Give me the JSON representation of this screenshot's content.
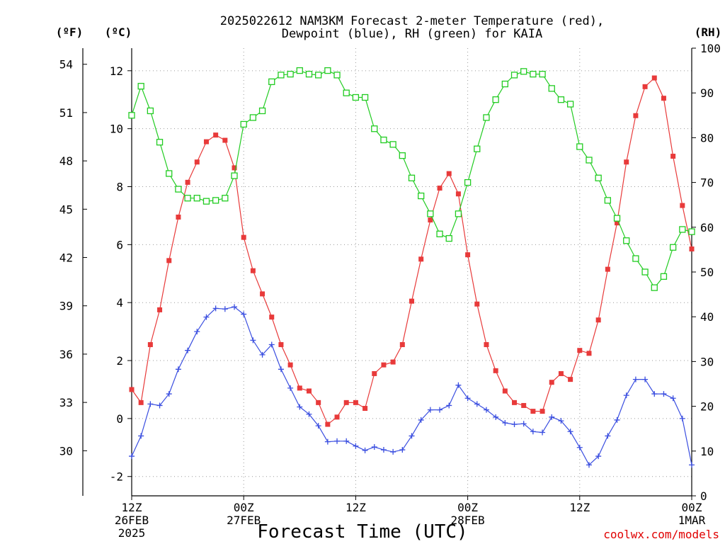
{
  "chart_data": {
    "type": "line",
    "title_line1": "2025022612 NAM3KM Forecast 2-meter Temperature (red),",
    "title_line2": "Dewpoint (blue), RH (green) for KAIA",
    "xlabel": "Forecast Time (UTC)",
    "credit": "coolwx.com/models",
    "unit_left_f": "(ºF)",
    "unit_left_c": "(ºC)",
    "unit_right": "(RH)",
    "x_ticks": [
      {
        "hour": 0,
        "line1": "12Z",
        "line2": "26FEB",
        "line3": "2025"
      },
      {
        "hour": 12,
        "line1": "00Z",
        "line2": "27FEB",
        "line3": ""
      },
      {
        "hour": 24,
        "line1": "12Z",
        "line2": "",
        "line3": ""
      },
      {
        "hour": 36,
        "line1": "00Z",
        "line2": "28FEB",
        "line3": ""
      },
      {
        "hour": 48,
        "line1": "12Z",
        "line2": "",
        "line3": ""
      },
      {
        "hour": 60,
        "line1": "00Z",
        "line2": "1MAR",
        "line3": ""
      }
    ],
    "xlim": [
      0,
      60
    ],
    "ylim_c": [
      -2.667,
      12.778
    ],
    "yticks_c": [
      "-2",
      "0",
      "2",
      "4",
      "6",
      "8",
      "10",
      "12"
    ],
    "yticks_f": [
      "30",
      "33",
      "36",
      "39",
      "42",
      "45",
      "48",
      "51",
      "54"
    ],
    "ylim_rh": [
      0,
      100
    ],
    "yticks_rh": [
      "0",
      "10",
      "20",
      "30",
      "40",
      "50",
      "60",
      "70",
      "80",
      "90",
      "100"
    ],
    "grid": true,
    "hours": [
      0,
      1,
      2,
      3,
      4,
      5,
      6,
      7,
      8,
      9,
      10,
      11,
      12,
      13,
      14,
      15,
      16,
      17,
      18,
      19,
      20,
      21,
      22,
      23,
      24,
      25,
      26,
      27,
      28,
      29,
      30,
      31,
      32,
      33,
      34,
      35,
      36,
      37,
      38,
      39,
      40,
      41,
      42,
      43,
      44,
      45,
      46,
      47,
      48,
      49,
      50,
      51,
      52,
      53,
      54,
      55,
      56,
      57,
      58,
      59,
      60
    ],
    "series": [
      {
        "name": "Temperature",
        "axis": "C",
        "color": "#e83a3a",
        "marker": "filled-square",
        "values": [
          1.0,
          0.55,
          2.55,
          3.75,
          5.45,
          6.95,
          8.15,
          8.85,
          9.55,
          9.78,
          9.6,
          8.65,
          6.25,
          5.1,
          4.3,
          3.5,
          2.55,
          1.85,
          1.05,
          0.95,
          0.55,
          -0.2,
          0.05,
          0.55,
          0.55,
          0.35,
          1.55,
          1.85,
          1.95,
          2.55,
          4.05,
          5.5,
          6.85,
          7.95,
          8.45,
          7.75,
          5.65,
          3.95,
          2.55,
          1.65,
          0.95,
          0.55,
          0.45,
          0.25,
          0.25,
          1.25,
          1.55,
          1.35,
          2.35,
          2.25,
          3.4,
          5.15,
          6.75,
          8.85,
          10.45,
          11.45,
          11.75,
          11.05,
          9.05,
          7.35,
          5.85
        ]
      },
      {
        "name": "Dewpoint",
        "axis": "C",
        "color": "#3a4ee0",
        "marker": "plus",
        "values": [
          -1.3,
          -0.6,
          0.5,
          0.45,
          0.85,
          1.7,
          2.35,
          3.0,
          3.5,
          3.8,
          3.78,
          3.85,
          3.6,
          2.7,
          2.2,
          2.55,
          1.7,
          1.05,
          0.4,
          0.15,
          -0.25,
          -0.8,
          -0.78,
          -0.78,
          -0.95,
          -1.1,
          -0.98,
          -1.08,
          -1.15,
          -1.08,
          -0.6,
          -0.05,
          0.3,
          0.3,
          0.45,
          1.15,
          0.7,
          0.5,
          0.3,
          0.05,
          -0.15,
          -0.2,
          -0.18,
          -0.45,
          -0.48,
          0.05,
          -0.08,
          -0.45,
          -1.0,
          -1.6,
          -1.3,
          -0.6,
          -0.05,
          0.8,
          1.35,
          1.35,
          0.85,
          0.85,
          0.7,
          0.0,
          -1.6
        ]
      },
      {
        "name": "RH",
        "axis": "RH",
        "color": "#22cc22",
        "marker": "open-square",
        "values": [
          85,
          91.5,
          86,
          79,
          72,
          68.5,
          66.5,
          66.5,
          65.8,
          66,
          66.5,
          71.5,
          83,
          84.5,
          86,
          92.5,
          94,
          94.2,
          95,
          94.2,
          94,
          95,
          94,
          90,
          89,
          89,
          82,
          79.5,
          78.5,
          76,
          71,
          67,
          63,
          58.5,
          57.5,
          63,
          70,
          77.5,
          84.5,
          88.5,
          92,
          94,
          94.8,
          94.2,
          94.2,
          91,
          88.5,
          87.5,
          78,
          75,
          71,
          66,
          62,
          57,
          53,
          50,
          46.5,
          49,
          55.5,
          59.5,
          59
        ]
      }
    ]
  }
}
